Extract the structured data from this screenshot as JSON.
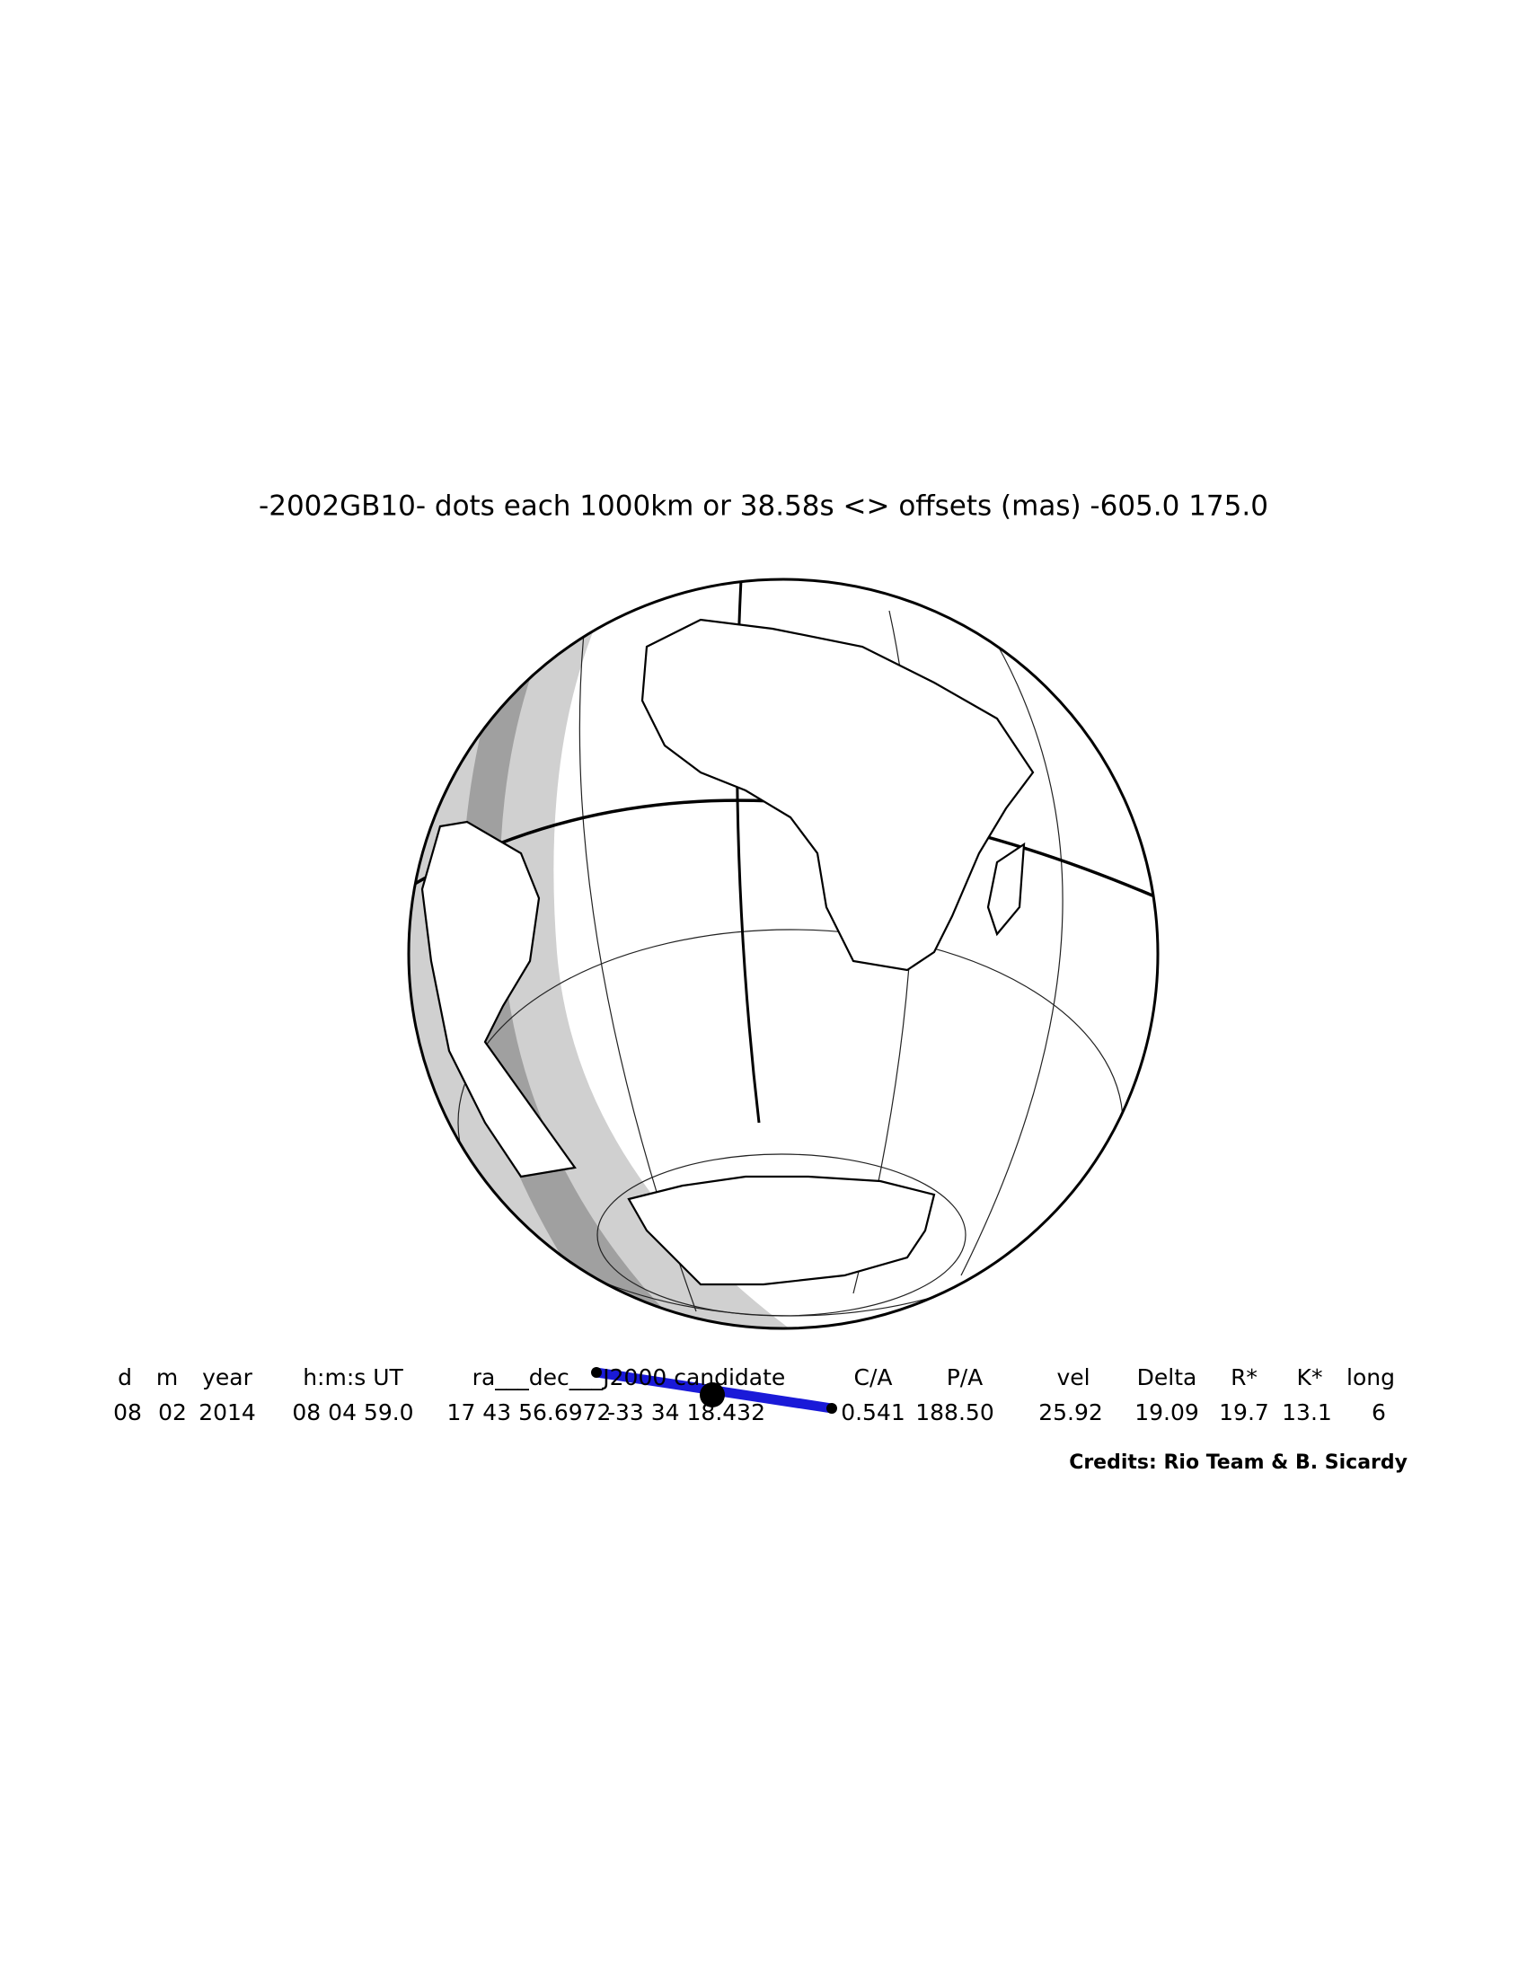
{
  "title": "-2002GB10-  dots each 1000km or 38.58s <> offsets (mas) -605.0   175.0",
  "table": {
    "headers": [
      "d",
      "m",
      "year",
      "h:m:s UT",
      "ra___dec___J2000 candidate",
      "C/A",
      "P/A",
      "vel",
      "Delta",
      "R*",
      "K*",
      "long"
    ],
    "values": [
      "08",
      "02",
      "2014",
      "08 04 59.0",
      "17 43 56.6972",
      "-33 34 18.432",
      "0.541",
      "188.50",
      "25.92",
      "19.09",
      "19.7",
      "13.1",
      "6"
    ]
  },
  "credits": "Credits: Rio Team & B. Sicardy"
}
